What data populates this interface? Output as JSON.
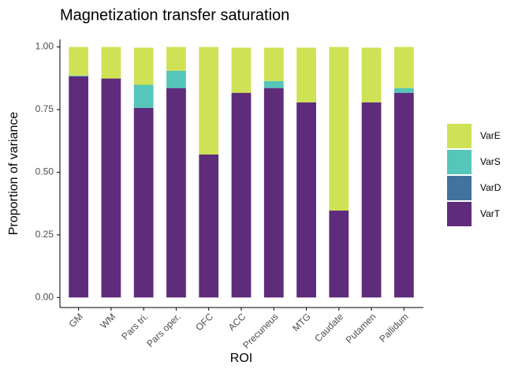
{
  "chart_data": {
    "type": "stacked_bar",
    "title": "Magnetization transfer saturation",
    "x_label": "ROI",
    "y_label": "Proportion of variance",
    "categories": [
      "GM",
      "WM",
      "Pars tri.",
      "Pars oper.",
      "OFC",
      "ACC",
      "Precuneus",
      "MTG",
      "Caudate",
      "Putamen",
      "Pallidum"
    ],
    "series": [
      {
        "name": "VarT",
        "color": "#5e2c7a",
        "values": [
          0.883,
          0.874,
          0.757,
          0.836,
          0.571,
          0.817,
          0.836,
          0.779,
          0.347,
          0.779,
          0.817
        ]
      },
      {
        "name": "VarD",
        "color": "#43729f",
        "values": [
          0,
          0,
          0,
          0,
          0,
          0,
          0,
          0,
          0,
          0,
          0
        ]
      },
      {
        "name": "VarS",
        "color": "#55c6b9",
        "values": [
          0.003,
          0,
          0.092,
          0.069,
          0,
          0,
          0.028,
          0,
          0,
          0,
          0.019
        ]
      },
      {
        "name": "VarE",
        "color": "#cfe255",
        "values": [
          0.114,
          0.126,
          0.148,
          0.095,
          0.429,
          0.18,
          0.133,
          0.218,
          0.653,
          0.218,
          0.164
        ]
      }
    ],
    "ylim": [
      -0.04,
      1.03
    ],
    "yticks": [
      {
        "value": 0,
        "label": "0.00"
      },
      {
        "value": 0.25,
        "label": "0.25"
      },
      {
        "value": 0.5,
        "label": "0.50"
      },
      {
        "value": 0.75,
        "label": "0.75"
      },
      {
        "value": 1,
        "label": "1.00"
      }
    ],
    "grid": false,
    "legend": "right"
  }
}
